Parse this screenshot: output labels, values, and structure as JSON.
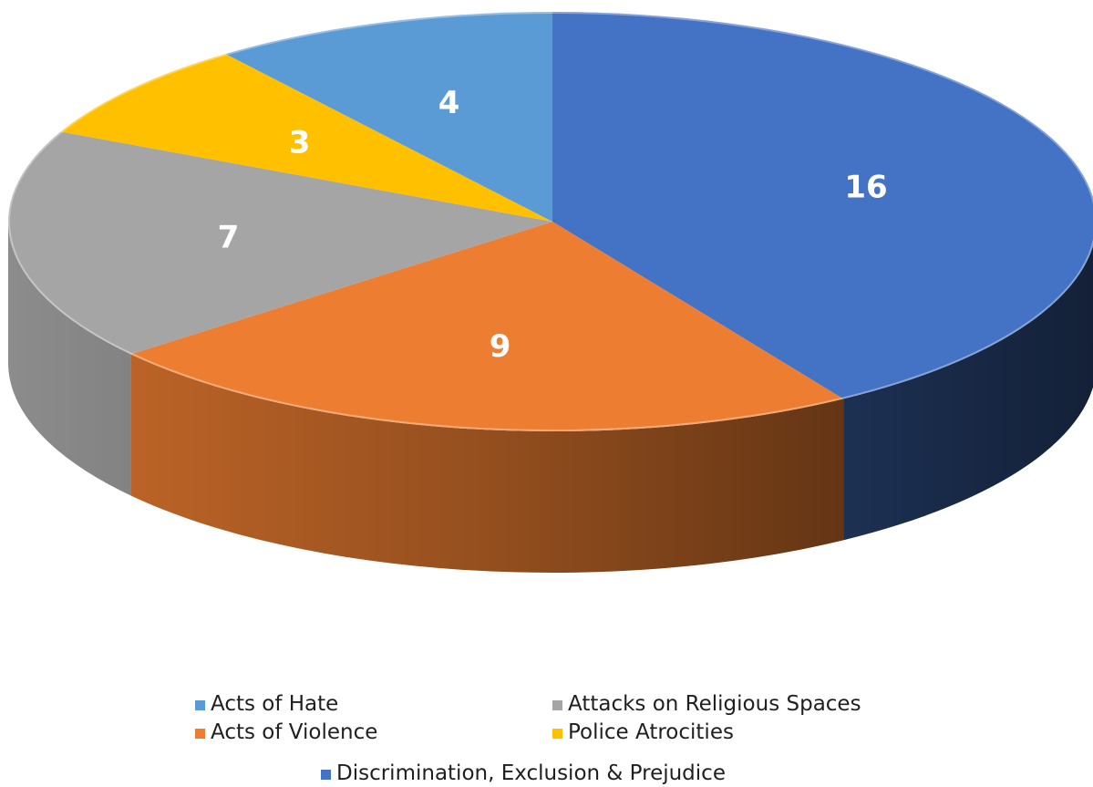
{
  "chart_data": {
    "type": "pie",
    "style": "3d",
    "title": "",
    "legend_position": "bottom",
    "categories": [
      "Discrimination, Exclusion & Prejudice",
      "Acts of Violence",
      "Attacks on Religious Spaces",
      "Police Atrocities",
      "Acts of Hate"
    ],
    "values": [
      16,
      9,
      7,
      3,
      4
    ],
    "colors": [
      "#4472C4",
      "#ED7D31",
      "#A5A5A5",
      "#FFC000",
      "#5B9BD5"
    ],
    "data_labels": [
      "16",
      "9",
      "7",
      "3",
      "4"
    ]
  },
  "legend": {
    "acts_of_hate": "Acts of Hate",
    "attacks_on_religious_spaces": "Attacks on Religious Spaces",
    "acts_of_violence": "Acts of Violence",
    "police_atrocities": "Police Atrocities",
    "discrimination": "Discrimination, Exclusion & Prejudice"
  }
}
